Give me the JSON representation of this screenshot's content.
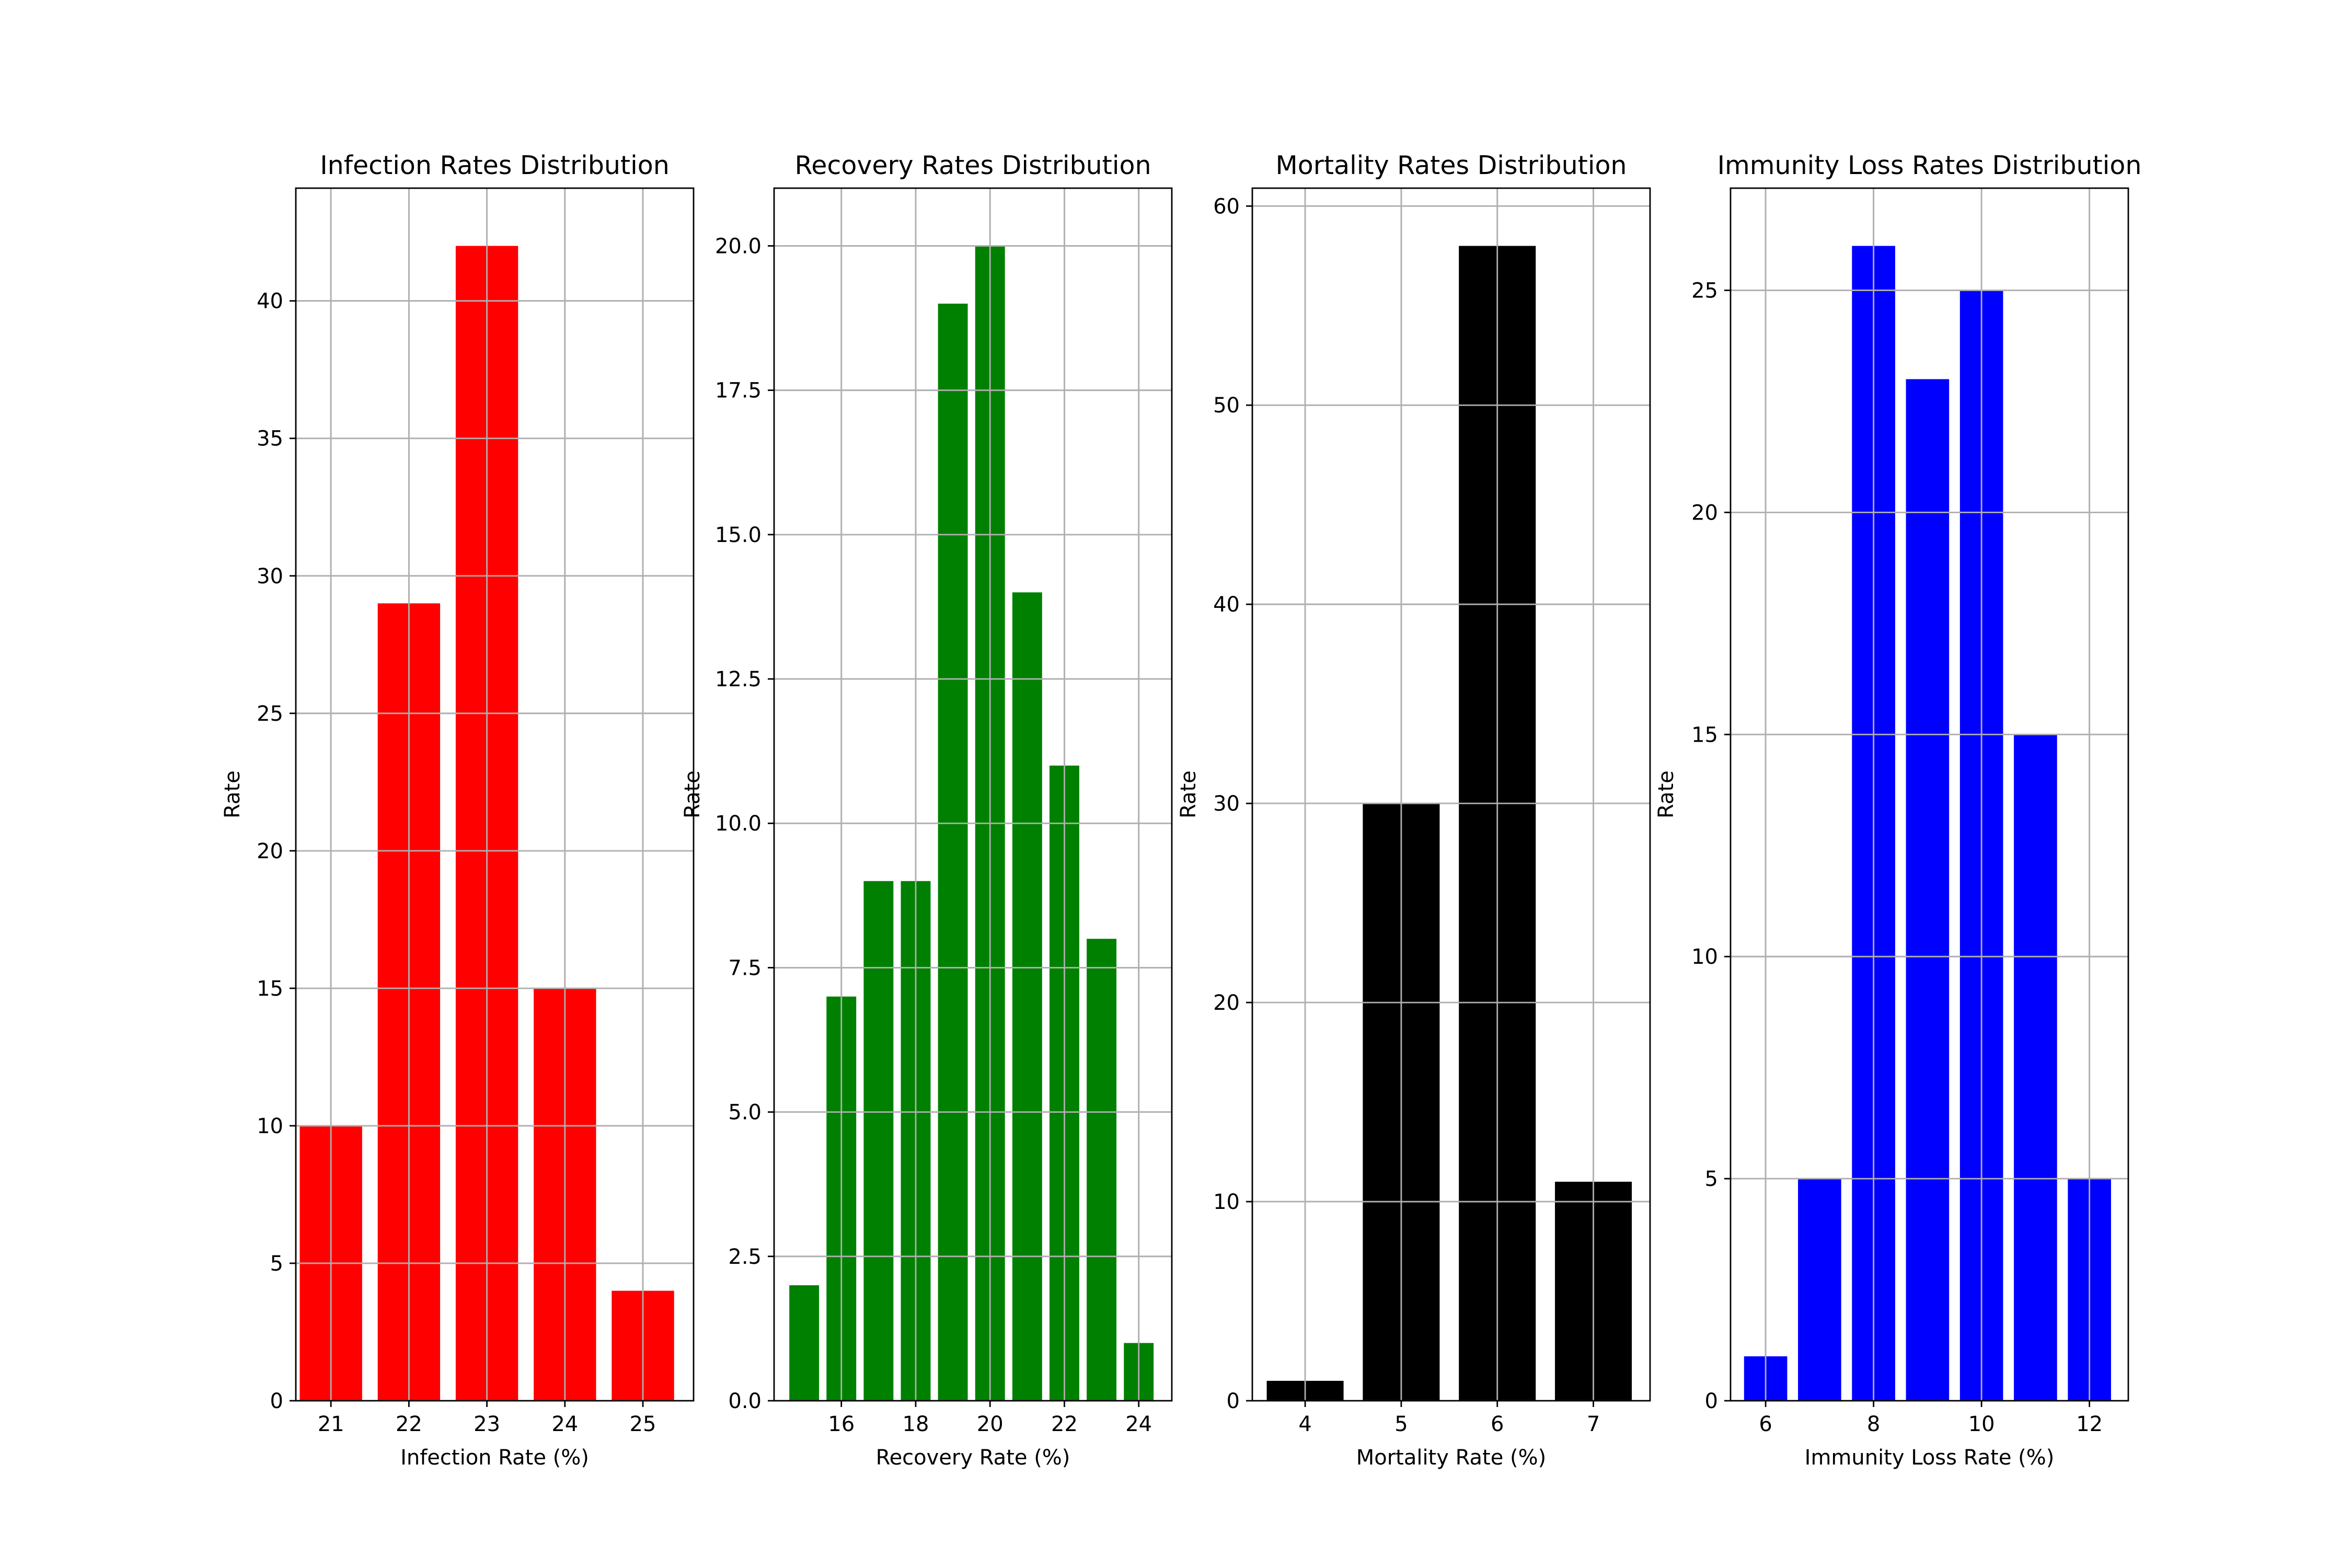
{
  "chart_data": [
    {
      "type": "bar",
      "title": "Infection Rates Distribution",
      "xlabel": "Infection Rate (%)",
      "ylabel": "Rate",
      "color": "#ff0000",
      "x": [
        21,
        22,
        23,
        24,
        25
      ],
      "values": [
        10,
        29,
        42,
        15,
        4
      ],
      "xlim": [
        20.55,
        25.65
      ],
      "ylim": [
        0,
        44.1
      ],
      "xticks": [
        21,
        22,
        23,
        24,
        25
      ],
      "yticks": [
        0,
        5,
        10,
        15,
        20,
        25,
        30,
        35,
        40
      ],
      "ytick_labels": [
        "0",
        "5",
        "10",
        "15",
        "20",
        "25",
        "30",
        "35",
        "40"
      ],
      "grid": true
    },
    {
      "type": "bar",
      "title": "Recovery Rates Distribution",
      "xlabel": "Recovery Rate (%)",
      "ylabel": "Rate",
      "color": "#008000",
      "x": [
        15,
        16,
        17,
        18,
        19,
        20,
        21,
        22,
        23,
        24
      ],
      "values": [
        2,
        7,
        9,
        9,
        19,
        20,
        14,
        11,
        8,
        1
      ],
      "xlim": [
        14.19,
        24.89
      ],
      "ylim": [
        0,
        21
      ],
      "xticks": [
        16,
        18,
        20,
        22,
        24
      ],
      "yticks": [
        0,
        2.5,
        5,
        7.5,
        10,
        12.5,
        15,
        17.5,
        20
      ],
      "ytick_labels": [
        "0.0",
        "2.5",
        "5.0",
        "7.5",
        "10.0",
        "12.5",
        "15.0",
        "17.5",
        "20.0"
      ],
      "grid": true
    },
    {
      "type": "bar",
      "title": "Mortality Rates Distribution",
      "xlabel": "Mortality Rate (%)",
      "ylabel": "Rate",
      "color": "#000000",
      "x": [
        4,
        5,
        6,
        7
      ],
      "values": [
        1,
        30,
        58,
        11
      ],
      "xlim": [
        3.45,
        7.59
      ],
      "ylim": [
        0,
        60.9
      ],
      "xticks": [
        4,
        5,
        6,
        7
      ],
      "yticks": [
        0,
        10,
        20,
        30,
        40,
        50,
        60
      ],
      "ytick_labels": [
        "0",
        "10",
        "20",
        "30",
        "40",
        "50",
        "60"
      ],
      "grid": true
    },
    {
      "type": "bar",
      "title": "Immunity Loss Rates Distribution",
      "xlabel": "Immunity Loss Rate (%)",
      "ylabel": "Rate",
      "color": "#0000ff",
      "x": [
        6,
        7,
        8,
        9,
        10,
        11,
        12
      ],
      "values": [
        1,
        5,
        26,
        23,
        25,
        15,
        5
      ],
      "xlim": [
        5.35,
        12.72
      ],
      "ylim": [
        0,
        27.3
      ],
      "xticks": [
        6,
        8,
        10,
        12
      ],
      "yticks": [
        0,
        5,
        10,
        15,
        20,
        25
      ],
      "ytick_labels": [
        "0",
        "5",
        "10",
        "15",
        "20",
        "25"
      ],
      "grid": true
    }
  ]
}
